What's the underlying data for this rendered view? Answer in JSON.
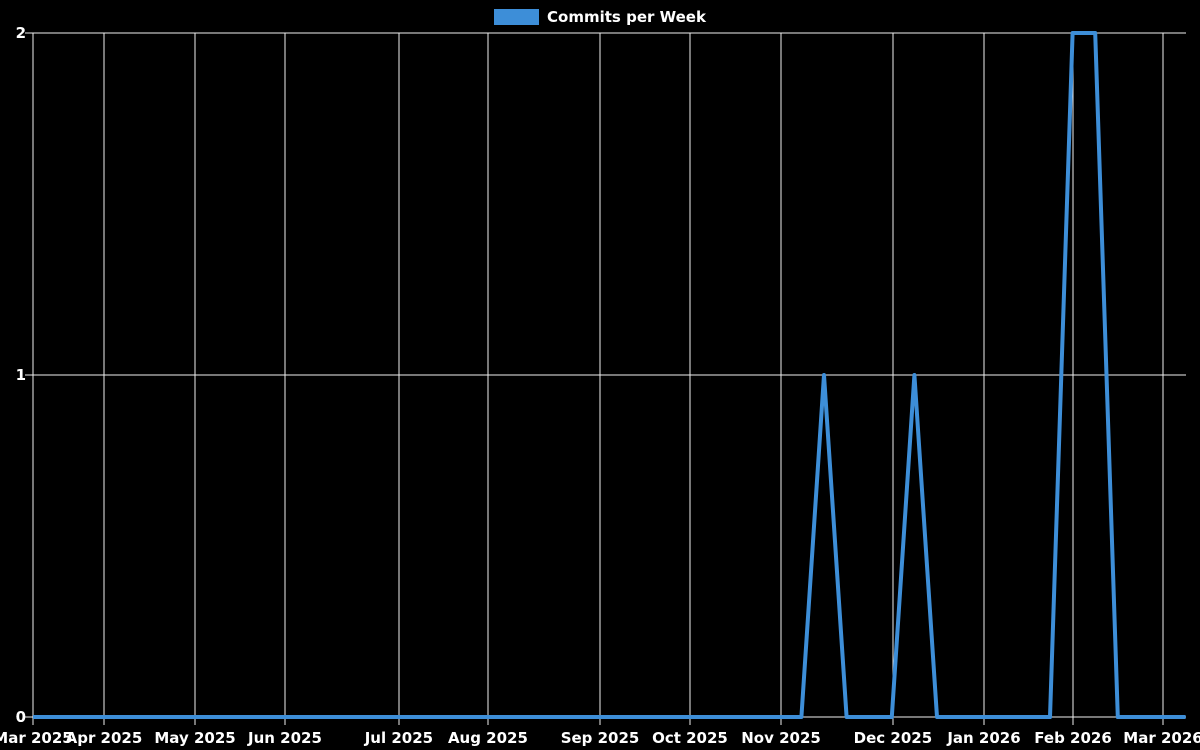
{
  "legend": {
    "label": "Commits per Week"
  },
  "chart_data": {
    "type": "line",
    "title": "Commits per Week",
    "legend_entries": [
      "Commits per Week"
    ],
    "legend_position": "top-center",
    "grid": true,
    "x_axis": {
      "unit": "weeks",
      "tick_labels": [
        "Mar 2025",
        "Apr 2025",
        "May 2025",
        "Jun 2025",
        "Jul 2025",
        "Aug 2025",
        "Sep 2025",
        "Oct 2025",
        "Nov 2025",
        "Dec 2025",
        "Jan 2026",
        "Feb 2026",
        "Mar 2026"
      ],
      "tick_week_positions": [
        0,
        3.14,
        7.17,
        11.15,
        16.19,
        20.13,
        25.09,
        29.07,
        33.1,
        38.05,
        42.08,
        46.02,
        50.0
      ]
    },
    "y_axis": {
      "tick_labels": [
        "0",
        "1",
        "2"
      ],
      "tick_values": [
        0,
        1,
        2
      ],
      "min": 0,
      "max": 2
    },
    "series": [
      {
        "name": "Commits per Week",
        "weekly_values": [
          0,
          0,
          0,
          0,
          0,
          0,
          0,
          0,
          0,
          0,
          0,
          0,
          0,
          0,
          0,
          0,
          0,
          0,
          0,
          0,
          0,
          0,
          0,
          0,
          0,
          0,
          0,
          0,
          0,
          0,
          0,
          0,
          0,
          0,
          0,
          1,
          0,
          0,
          0,
          1,
          0,
          0,
          0,
          0,
          0,
          0,
          2,
          2,
          0,
          0,
          0,
          0
        ]
      }
    ],
    "colors": {
      "line": "#3d8ed8",
      "grid": "#f0f0f0",
      "text": "#ffffff",
      "background": "#000000"
    }
  }
}
